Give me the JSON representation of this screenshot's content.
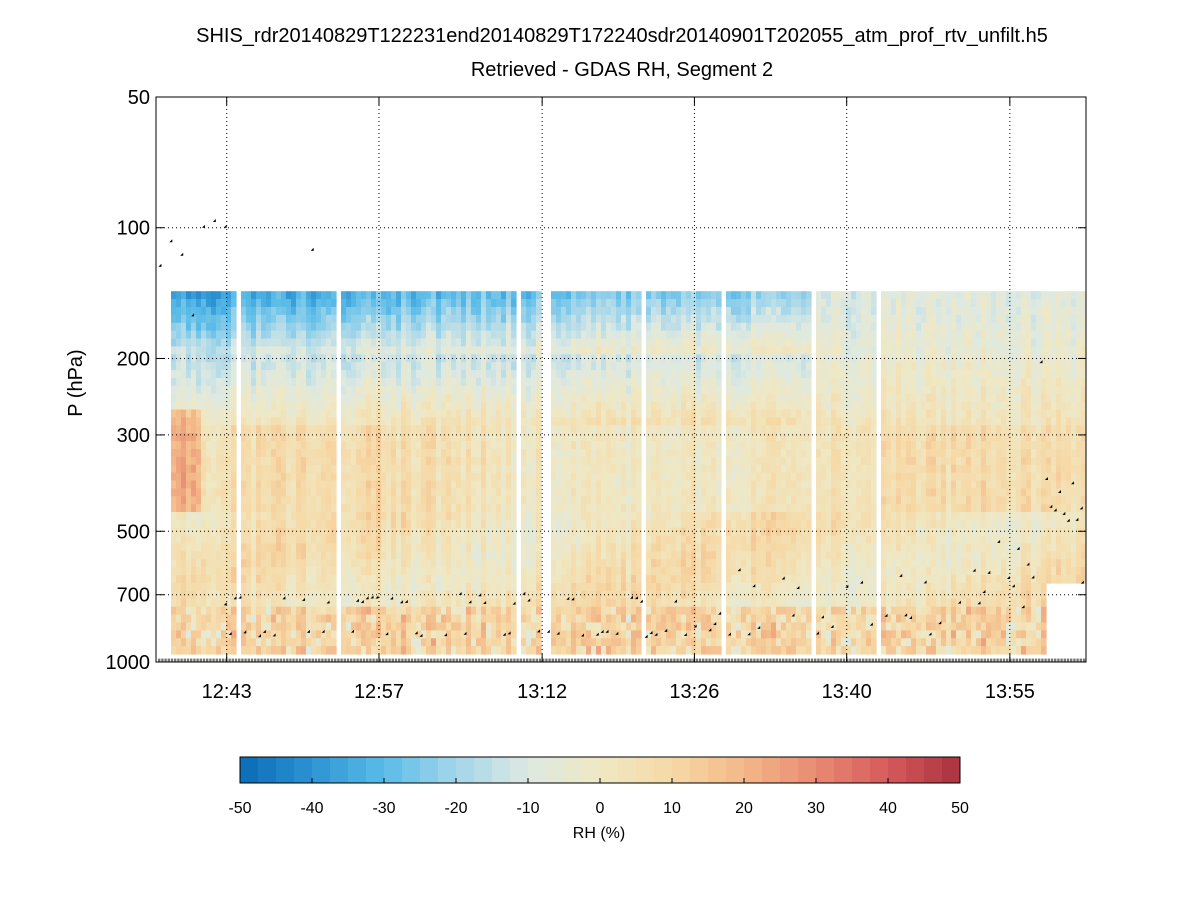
{
  "chart_data": {
    "type": "heatmap",
    "title_line1": "SHIS_rdr20140829T122231end20140829T172240sdr20140901T202055_atm_prof_rtv_unfilt.h5",
    "title_line2": "Retrieved - GDAS RH, Segment 2",
    "ylabel": "P (hPa)",
    "yscale": "log",
    "yrange_hPa": [
      50,
      1000
    ],
    "y_ticks": [
      50,
      100,
      200,
      300,
      500,
      700,
      1000
    ],
    "x_ticks": [
      "12:43",
      "12:57",
      "13:12",
      "13:26",
      "13:40",
      "13:55"
    ],
    "x_tick_minutes": [
      763,
      777,
      792,
      806,
      820,
      835
    ],
    "xrange_minutes": [
      756.5,
      842
    ],
    "grid": "dotted",
    "data_valid_pressure_hPa": [
      140,
      1000
    ],
    "colorbar": {
      "label": "RH (%)",
      "range": [
        -50,
        50
      ],
      "ticks": [
        "-50",
        "-40",
        "-30",
        "-20",
        "-10",
        "0",
        "10",
        "20",
        "30",
        "40",
        "50"
      ],
      "colors": [
        "#0a6bb5",
        "#2c93d3",
        "#5bbce8",
        "#a4d6ea",
        "#dde9e2",
        "#efe8c4",
        "#f6d9a6",
        "#f3b888",
        "#e98a72",
        "#d65a5c",
        "#a8323f"
      ]
    },
    "overlay_markers": "black diamond points (retrieved cloud-top pressures) and grey surface-pressure marks near 1000 hPa"
  }
}
